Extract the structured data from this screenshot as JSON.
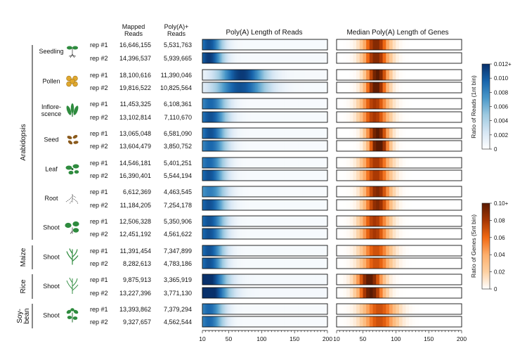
{
  "column_headers": {
    "mapped_reads": [
      "Mapped",
      "Reads"
    ],
    "polya_reads": [
      "Poly(A)+",
      "Reads"
    ],
    "reads_heatmap_title": "Poly(A) Length of Reads",
    "genes_heatmap_title": "Median Poly(A) Length of Genes"
  },
  "chart_data": {
    "type": "heatmap",
    "species": [
      {
        "name": "Arabidopsis",
        "tissues": [
          {
            "name": "Seedling",
            "icon": "seedling-icon",
            "reps": [
              {
                "label": "rep #1",
                "mapped": "16,646,155",
                "polya": "5,531,763"
              },
              {
                "label": "rep #2",
                "mapped": "14,396,537",
                "polya": "5,939,665"
              }
            ]
          },
          {
            "name": "Pollen",
            "icon": "pollen-icon",
            "reps": [
              {
                "label": "rep #1",
                "mapped": "18,100,616",
                "polya": "11,390,046"
              },
              {
                "label": "rep #2",
                "mapped": "19,816,522",
                "polya": "10,825,564"
              }
            ]
          },
          {
            "name": "Inflore-\nscence",
            "icon": "inflorescence-icon",
            "reps": [
              {
                "label": "rep #1",
                "mapped": "11,453,325",
                "polya": "6,108,361"
              },
              {
                "label": "rep #2",
                "mapped": "13,102,814",
                "polya": "7,110,670"
              }
            ]
          },
          {
            "name": "Seed",
            "icon": "seed-icon",
            "reps": [
              {
                "label": "rep #1",
                "mapped": "13,065,048",
                "polya": "6,581,090"
              },
              {
                "label": "rep #2",
                "mapped": "13,604,479",
                "polya": "3,850,752"
              }
            ]
          },
          {
            "name": "Leaf",
            "icon": "leaf-icon",
            "reps": [
              {
                "label": "rep #1",
                "mapped": "14,546,181",
                "polya": "5,401,251"
              },
              {
                "label": "rep #2",
                "mapped": "16,390,401",
                "polya": "5,544,194"
              }
            ]
          },
          {
            "name": "Root",
            "icon": "root-icon",
            "reps": [
              {
                "label": "rep #1",
                "mapped": "6,612,369",
                "polya": "4,463,545"
              },
              {
                "label": "rep #2",
                "mapped": "11,184,205",
                "polya": "7,254,178"
              }
            ]
          },
          {
            "name": "Shoot",
            "icon": "shoot-icon",
            "reps": [
              {
                "label": "rep #1",
                "mapped": "12,506,328",
                "polya": "5,350,906"
              },
              {
                "label": "rep #2",
                "mapped": "12,451,192",
                "polya": "4,561,622"
              }
            ]
          }
        ]
      },
      {
        "name": "Maize",
        "tissues": [
          {
            "name": "Shoot",
            "icon": "maize-shoot-icon",
            "reps": [
              {
                "label": "rep #1",
                "mapped": "11,391,454",
                "polya": "7,347,899"
              },
              {
                "label": "rep #2",
                "mapped": "8,282,613",
                "polya": "4,783,186"
              }
            ]
          }
        ]
      },
      {
        "name": "Rice",
        "tissues": [
          {
            "name": "Shoot",
            "icon": "rice-shoot-icon",
            "reps": [
              {
                "label": "rep #1",
                "mapped": "9,875,913",
                "polya": "3,365,919"
              },
              {
                "label": "rep #2",
                "mapped": "13,227,396",
                "polya": "3,771,130"
              }
            ]
          }
        ]
      },
      {
        "name": "Soy-\nbean",
        "tissues": [
          {
            "name": "Shoot",
            "icon": "soybean-shoot-icon",
            "reps": [
              {
                "label": "rep #1",
                "mapped": "13,393,862",
                "polya": "7,379,294"
              },
              {
                "label": "rep #2",
                "mapped": "9,327,657",
                "polya": "4,562,544"
              }
            ]
          }
        ]
      }
    ],
    "reads_heatmap": {
      "title": "Poly(A) Length of Reads",
      "xlim": [
        10,
        200
      ],
      "xticks": [
        "10",
        "50",
        "100",
        "150",
        "200"
      ],
      "bin_size_nt": 1,
      "colorbar": {
        "label": "Ratio of Reads (1nt bin)",
        "ticks": [
          "0",
          "0.002",
          "0.004",
          "0.006",
          "0.008",
          "0.010",
          "0.012+"
        ],
        "range": [
          0,
          0.012
        ],
        "colors": [
          "#ffffff",
          "#d6e6f4",
          "#9ecae1",
          "#4a98c9",
          "#1764ab",
          "#08306b"
        ]
      }
    },
    "genes_heatmap": {
      "title": "Median Poly(A) Length of Genes",
      "xlim": [
        10,
        200
      ],
      "xticks": [
        "10",
        "50",
        "100",
        "150",
        "200"
      ],
      "bin_size_nt": 5,
      "colorbar": {
        "label": "Ratio of Genes (5nt bin)",
        "ticks": [
          "0",
          "0.02",
          "0.04",
          "0.06",
          "0.08",
          "0.10+"
        ],
        "range": [
          0,
          0.1
        ],
        "colors": [
          "#ffffff",
          "#fdd0a2",
          "#fdae6b",
          "#f16913",
          "#a63603",
          "#5a1a02"
        ]
      }
    },
    "reads_profiles": [
      {
        "peak": 20,
        "width": 15,
        "amp": 0.01
      },
      {
        "peak": 20,
        "width": 15,
        "amp": 0.011
      },
      {
        "peak": 70,
        "width": 25,
        "amp": 0.011
      },
      {
        "peak": 68,
        "width": 28,
        "amp": 0.01
      },
      {
        "peak": 22,
        "width": 18,
        "amp": 0.009
      },
      {
        "peak": 22,
        "width": 18,
        "amp": 0.01
      },
      {
        "peak": 22,
        "width": 17,
        "amp": 0.01
      },
      {
        "peak": 22,
        "width": 18,
        "amp": 0.009
      },
      {
        "peak": 20,
        "width": 17,
        "amp": 0.009
      },
      {
        "peak": 20,
        "width": 17,
        "amp": 0.01
      },
      {
        "peak": 21,
        "width": 18,
        "amp": 0.008
      },
      {
        "peak": 20,
        "width": 18,
        "amp": 0.01
      },
      {
        "peak": 20,
        "width": 17,
        "amp": 0.01
      },
      {
        "peak": 20,
        "width": 17,
        "amp": 0.01
      },
      {
        "peak": 20,
        "width": 16,
        "amp": 0.01
      },
      {
        "peak": 20,
        "width": 16,
        "amp": 0.01
      },
      {
        "peak": 18,
        "width": 20,
        "amp": 0.012
      },
      {
        "peak": 18,
        "width": 22,
        "amp": 0.013
      },
      {
        "peak": 20,
        "width": 16,
        "amp": 0.009
      },
      {
        "peak": 20,
        "width": 16,
        "amp": 0.009
      }
    ],
    "genes_profiles": [
      {
        "peak": 70,
        "width": 14,
        "amp": 0.09
      },
      {
        "peak": 70,
        "width": 14,
        "amp": 0.09
      },
      {
        "peak": 72,
        "width": 12,
        "amp": 0.1
      },
      {
        "peak": 70,
        "width": 12,
        "amp": 0.1
      },
      {
        "peak": 68,
        "width": 15,
        "amp": 0.08
      },
      {
        "peak": 68,
        "width": 15,
        "amp": 0.08
      },
      {
        "peak": 72,
        "width": 12,
        "amp": 0.1
      },
      {
        "peak": 74,
        "width": 11,
        "amp": 0.11
      },
      {
        "peak": 70,
        "width": 15,
        "amp": 0.08
      },
      {
        "peak": 70,
        "width": 15,
        "amp": 0.08
      },
      {
        "peak": 72,
        "width": 14,
        "amp": 0.09
      },
      {
        "peak": 72,
        "width": 14,
        "amp": 0.09
      },
      {
        "peak": 68,
        "width": 15,
        "amp": 0.08
      },
      {
        "peak": 68,
        "width": 15,
        "amp": 0.08
      },
      {
        "peak": 70,
        "width": 16,
        "amp": 0.07
      },
      {
        "peak": 70,
        "width": 16,
        "amp": 0.07
      },
      {
        "peak": 60,
        "width": 14,
        "amp": 0.1
      },
      {
        "peak": 62,
        "width": 14,
        "amp": 0.1
      },
      {
        "peak": 75,
        "width": 18,
        "amp": 0.07
      },
      {
        "peak": 75,
        "width": 18,
        "amp": 0.07
      }
    ]
  }
}
